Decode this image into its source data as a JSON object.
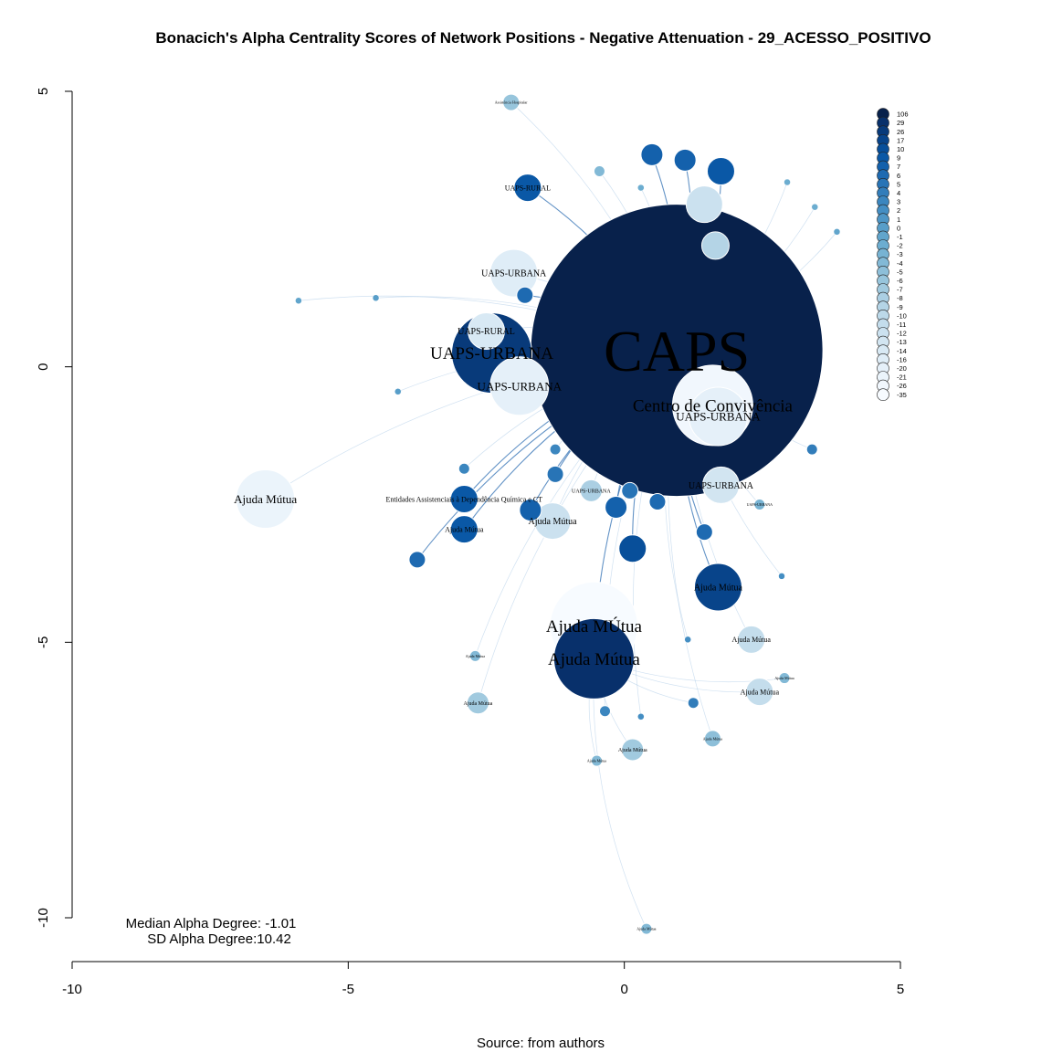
{
  "chart_data": {
    "type": "scatter",
    "subtype": "network-graph",
    "title": "Bonacich's Alpha Centrality Scores of Network Positions - Negative Attenuation - 29_ACESSO_POSITIVO",
    "source": "Source: from authors",
    "xlim": [
      -10,
      5
    ],
    "ylim": [
      -10,
      5
    ],
    "x_ticks": [
      "-10",
      "-5",
      "0",
      "5"
    ],
    "y_ticks": [
      "5",
      "0",
      "-5",
      "-10"
    ],
    "stats": {
      "median_line": "Median Alpha Degree: -1.01",
      "sd_line": "SD Alpha Degree:10.42"
    },
    "legend_position": "top-right",
    "legend": [
      {
        "label": "106",
        "color": "#08214b"
      },
      {
        "label": "29",
        "color": "#08306b"
      },
      {
        "label": "26",
        "color": "#083a7a"
      },
      {
        "label": "17",
        "color": "#08448a"
      },
      {
        "label": "10",
        "color": "#084f9a"
      },
      {
        "label": "9",
        "color": "#0a58a6"
      },
      {
        "label": "7",
        "color": "#1461ac"
      },
      {
        "label": "6",
        "color": "#1e6ab1"
      },
      {
        "label": "5",
        "color": "#2874b6"
      },
      {
        "label": "4",
        "color": "#327dba"
      },
      {
        "label": "3",
        "color": "#3b86bf"
      },
      {
        "label": "2",
        "color": "#448ec3"
      },
      {
        "label": "1",
        "color": "#4e96c6"
      },
      {
        "label": "0",
        "color": "#589ec9"
      },
      {
        "label": "-1",
        "color": "#61a5cc"
      },
      {
        "label": "-2",
        "color": "#6cadd0"
      },
      {
        "label": "-3",
        "color": "#77b3d3"
      },
      {
        "label": "-4",
        "color": "#82b9d6"
      },
      {
        "label": "-5",
        "color": "#8dbfd9"
      },
      {
        "label": "-6",
        "color": "#97c5dc"
      },
      {
        "label": "-7",
        "color": "#a1cadf"
      },
      {
        "label": "-8",
        "color": "#abcfe3"
      },
      {
        "label": "-9",
        "color": "#b4d4e6"
      },
      {
        "label": "-10",
        "color": "#bcd9e9"
      },
      {
        "label": "-11",
        "color": "#c4ddec"
      },
      {
        "label": "-12",
        "color": "#cbe1ef"
      },
      {
        "label": "-13",
        "color": "#d2e5f1"
      },
      {
        "label": "-14",
        "color": "#d8e9f4"
      },
      {
        "label": "-16",
        "color": "#dfedf7"
      },
      {
        "label": "-20",
        "color": "#e5f0f9"
      },
      {
        "label": "-21",
        "color": "#ebf4fb"
      },
      {
        "label": "-26",
        "color": "#f1f7fd"
      },
      {
        "label": "-35",
        "color": "#f7fbff"
      }
    ],
    "nodes": [
      {
        "x": 0.95,
        "y": 0.3,
        "alpha": 106,
        "label": "CAPS"
      },
      {
        "x": -0.55,
        "y": -5.3,
        "alpha": 29,
        "label": "Ajuda Mútua"
      },
      {
        "x": -0.55,
        "y": -4.7,
        "alpha": -35,
        "label": "Ajuda MÚtua"
      },
      {
        "x": -2.4,
        "y": 0.25,
        "alpha": 26,
        "label": "UAPS-URBANA"
      },
      {
        "x": 1.6,
        "y": -0.7,
        "alpha": -26,
        "label": "Centro de Convivência"
      },
      {
        "x": 1.7,
        "y": -0.9,
        "alpha": -20,
        "label": "UAPS-URBANA"
      },
      {
        "x": 1.7,
        "y": -4.0,
        "alpha": 17,
        "label": "Ajuda Mútua"
      },
      {
        "x": -6.5,
        "y": -2.4,
        "alpha": -21,
        "label": "Ajuda Mútua"
      },
      {
        "x": -2.0,
        "y": 1.7,
        "alpha": -16,
        "label": "UAPS-URBANA"
      },
      {
        "x": -1.9,
        "y": -0.35,
        "alpha": -20,
        "label": "UAPS-URBANA"
      },
      {
        "x": -2.5,
        "y": 0.65,
        "alpha": -14,
        "label": "UAPS-RURAL"
      },
      {
        "x": -1.3,
        "y": -2.8,
        "alpha": -12,
        "label": "Ajuda Mútua"
      },
      {
        "x": 1.75,
        "y": -2.15,
        "alpha": -13,
        "label": "UAPS-URBANA"
      },
      {
        "x": -1.75,
        "y": 3.25,
        "alpha": 9,
        "label": "UAPS-RURAL"
      },
      {
        "x": -2.05,
        "y": 4.8,
        "alpha": -6,
        "label": "Assistência Hospitalar"
      },
      {
        "x": -2.9,
        "y": -2.4,
        "alpha": 9,
        "label": "Entidades Assistenciais à Dependência Química e CT"
      },
      {
        "x": -2.9,
        "y": -2.95,
        "alpha": 9,
        "label": "Ajuda Mútua"
      },
      {
        "x": 2.3,
        "y": -4.95,
        "alpha": -11,
        "label": "Ajuda Mútua"
      },
      {
        "x": 2.45,
        "y": -5.9,
        "alpha": -11,
        "label": "Ajuda Mútua"
      },
      {
        "x": -2.65,
        "y": -6.1,
        "alpha": -7,
        "label": "Ajuda Mútua"
      },
      {
        "x": 0.15,
        "y": -6.95,
        "alpha": -7,
        "label": "Ajuda Mútua"
      },
      {
        "x": 1.6,
        "y": -6.75,
        "alpha": -5,
        "label": "Ajuda Mútua"
      },
      {
        "x": -0.5,
        "y": -7.15,
        "alpha": -4,
        "label": "Ajuda Mútua"
      },
      {
        "x": -2.7,
        "y": -5.25,
        "alpha": -4,
        "label": "Ajuda Mútua"
      },
      {
        "x": 2.9,
        "y": -5.65,
        "alpha": -4,
        "label": "Ajuda Mútua"
      },
      {
        "x": -0.6,
        "y": -2.25,
        "alpha": -8,
        "label": "UAPS-URBANA"
      },
      {
        "x": 2.45,
        "y": -2.5,
        "alpha": -3,
        "label": "UAPS-URBANA"
      },
      {
        "x": 0.15,
        "y": -3.3,
        "alpha": 10,
        "label": ""
      },
      {
        "x": 1.45,
        "y": 2.95,
        "alpha": -12,
        "label": ""
      },
      {
        "x": 1.65,
        "y": 2.2,
        "alpha": -9,
        "label": ""
      },
      {
        "x": -0.45,
        "y": 3.55,
        "alpha": -4,
        "label": ""
      },
      {
        "x": 0.5,
        "y": 3.85,
        "alpha": 7,
        "label": ""
      },
      {
        "x": 1.1,
        "y": 3.75,
        "alpha": 7,
        "label": ""
      },
      {
        "x": 1.75,
        "y": 3.55,
        "alpha": 9,
        "label": ""
      },
      {
        "x": 0.3,
        "y": 3.25,
        "alpha": -2,
        "label": ""
      },
      {
        "x": 2.95,
        "y": 3.35,
        "alpha": -2,
        "label": ""
      },
      {
        "x": 3.45,
        "y": 2.9,
        "alpha": -2,
        "label": ""
      },
      {
        "x": 3.85,
        "y": 2.45,
        "alpha": -1,
        "label": ""
      },
      {
        "x": -1.8,
        "y": 1.3,
        "alpha": 6,
        "label": ""
      },
      {
        "x": -5.9,
        "y": 1.2,
        "alpha": -1,
        "label": ""
      },
      {
        "x": -4.5,
        "y": 1.25,
        "alpha": 0,
        "label": ""
      },
      {
        "x": -4.1,
        "y": -0.45,
        "alpha": 0,
        "label": ""
      },
      {
        "x": -1.7,
        "y": -2.6,
        "alpha": 7,
        "label": ""
      },
      {
        "x": -1.25,
        "y": -1.95,
        "alpha": 5,
        "label": ""
      },
      {
        "x": 1.45,
        "y": -3.0,
        "alpha": 6,
        "label": ""
      },
      {
        "x": -3.75,
        "y": -3.5,
        "alpha": 6,
        "label": ""
      },
      {
        "x": -0.15,
        "y": -2.55,
        "alpha": 7,
        "label": ""
      },
      {
        "x": -0.35,
        "y": -6.25,
        "alpha": 3,
        "label": ""
      },
      {
        "x": 1.25,
        "y": -6.1,
        "alpha": 4,
        "label": ""
      },
      {
        "x": 0.3,
        "y": -6.35,
        "alpha": 2,
        "label": ""
      },
      {
        "x": 0.4,
        "y": -10.2,
        "alpha": -4,
        "label": "Ajuda Mútua"
      },
      {
        "x": 2.85,
        "y": -3.8,
        "alpha": 2,
        "label": ""
      },
      {
        "x": 3.4,
        "y": -1.5,
        "alpha": 4,
        "label": ""
      },
      {
        "x": -2.9,
        "y": -1.85,
        "alpha": 3,
        "label": ""
      },
      {
        "x": -1.25,
        "y": -1.5,
        "alpha": 3,
        "label": ""
      },
      {
        "x": 1.15,
        "y": -4.95,
        "alpha": 2,
        "label": ""
      },
      {
        "x": 0.1,
        "y": -2.25,
        "alpha": 5,
        "label": ""
      },
      {
        "x": 0.6,
        "y": -2.45,
        "alpha": 6,
        "label": ""
      }
    ]
  }
}
